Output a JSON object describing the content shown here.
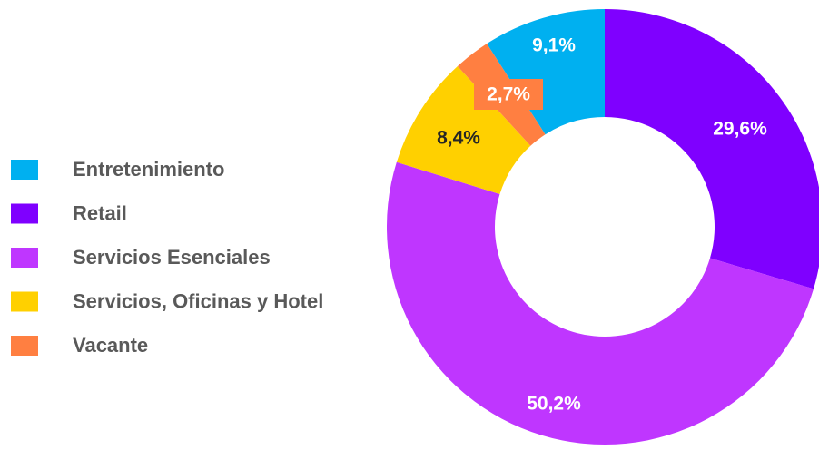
{
  "chart_data": {
    "type": "donut",
    "categories": [
      "Entretenimiento",
      "Retail",
      "Servicios Esenciales",
      "Servicios, Oficinas y Hotel",
      "Vacante"
    ],
    "values": [
      9.1,
      29.6,
      50.2,
      8.4,
      2.7
    ],
    "value_labels": [
      "9,1%",
      "29,6%",
      "50,2%",
      "8,4%",
      "2,7%"
    ],
    "colors": [
      "#00b0f0",
      "#7f00ff",
      "#bf36ff",
      "#ffd000",
      "#ff7f41"
    ],
    "legend": "left"
  }
}
